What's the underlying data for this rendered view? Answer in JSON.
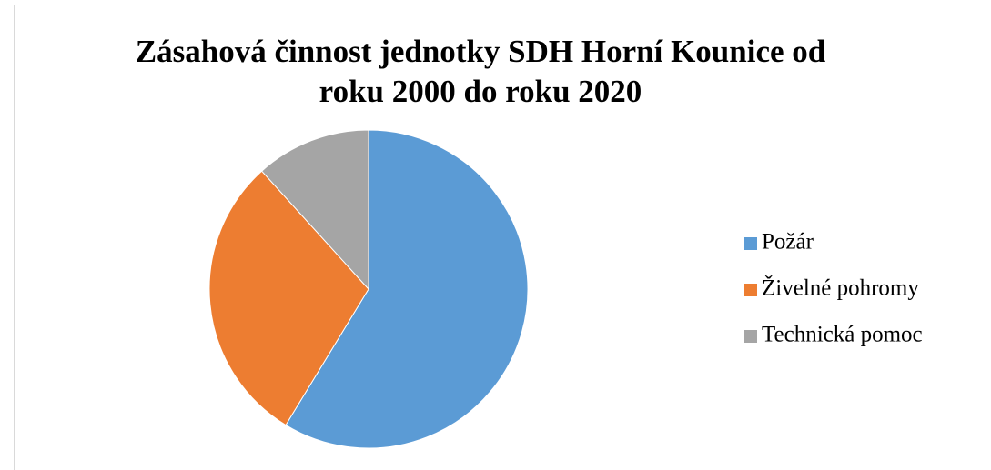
{
  "chart_data": {
    "type": "pie",
    "title": [
      "Zásahová činnost jednotky SDH Horní Kounice od",
      "roku 2000 do roku 2020"
    ],
    "categories": [
      "Požár",
      "Živelné pohromy",
      "Technická pomoc"
    ],
    "values": [
      58.7,
      29.6,
      11.7
    ],
    "colors": [
      "#5b9bd5",
      "#ed7d31",
      "#a5a5a5"
    ],
    "legend": "right"
  }
}
